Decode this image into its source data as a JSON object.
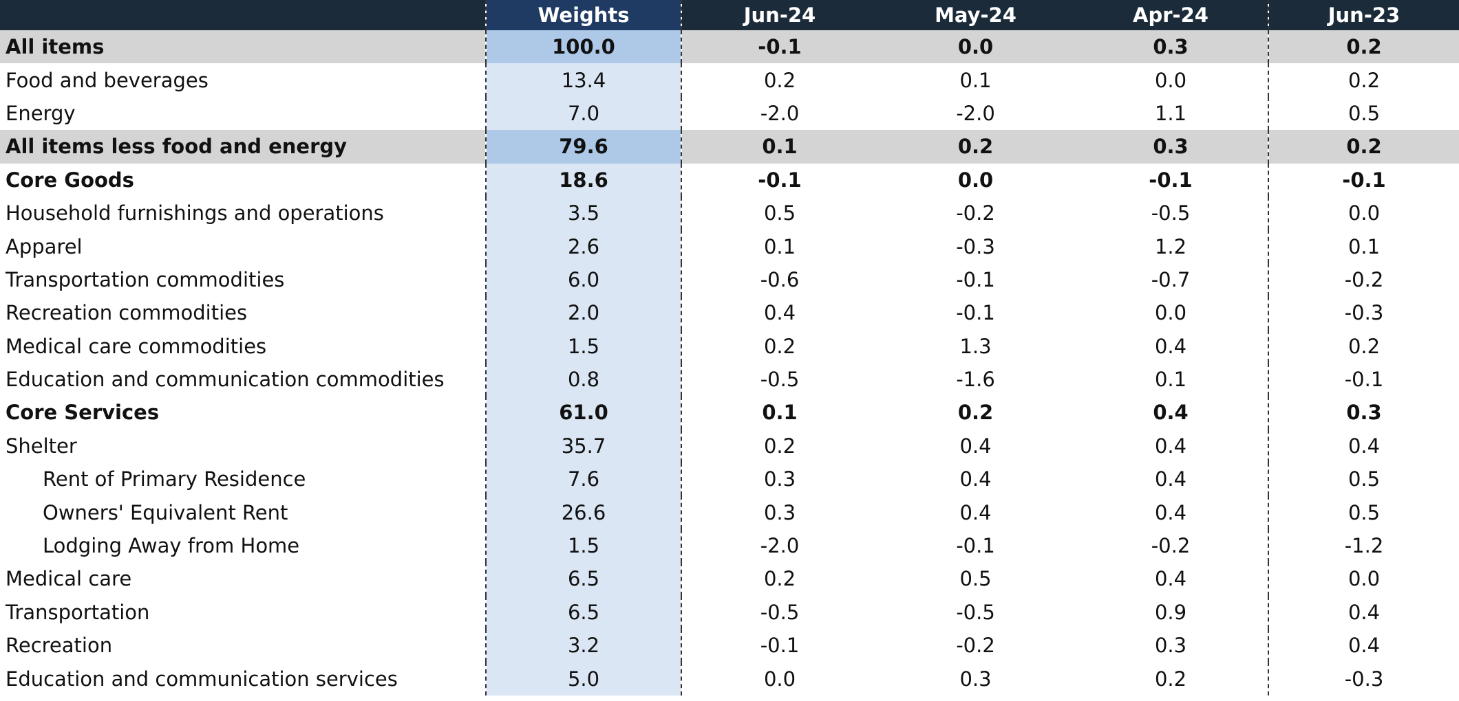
{
  "columns": [
    "",
    "Weights",
    "Jun-24",
    "May-24",
    "Apr-24",
    "Jun-23"
  ],
  "rows": [
    {
      "label": "All items",
      "weight": "100.0",
      "jun24": "-0.1",
      "may24": "0.0",
      "apr24": "0.3",
      "jun23": "0.2",
      "bold": true,
      "shaded": true,
      "indent": false
    },
    {
      "label": "Food and beverages",
      "weight": "13.4",
      "jun24": "0.2",
      "may24": "0.1",
      "apr24": "0.0",
      "jun23": "0.2",
      "bold": false,
      "shaded": false,
      "indent": false
    },
    {
      "label": "Energy",
      "weight": "7.0",
      "jun24": "-2.0",
      "may24": "-2.0",
      "apr24": "1.1",
      "jun23": "0.5",
      "bold": false,
      "shaded": false,
      "indent": false
    },
    {
      "label": "All items less food and energy",
      "weight": "79.6",
      "jun24": "0.1",
      "may24": "0.2",
      "apr24": "0.3",
      "jun23": "0.2",
      "bold": true,
      "shaded": true,
      "indent": false
    },
    {
      "label": "Core Goods",
      "weight": "18.6",
      "jun24": "-0.1",
      "may24": "0.0",
      "apr24": "-0.1",
      "jun23": "-0.1",
      "bold": true,
      "shaded": false,
      "indent": false
    },
    {
      "label": "Household furnishings and operations",
      "weight": "3.5",
      "jun24": "0.5",
      "may24": "-0.2",
      "apr24": "-0.5",
      "jun23": "0.0",
      "bold": false,
      "shaded": false,
      "indent": false
    },
    {
      "label": "Apparel",
      "weight": "2.6",
      "jun24": "0.1",
      "may24": "-0.3",
      "apr24": "1.2",
      "jun23": "0.1",
      "bold": false,
      "shaded": false,
      "indent": false
    },
    {
      "label": "Transportation commodities",
      "weight": "6.0",
      "jun24": "-0.6",
      "may24": "-0.1",
      "apr24": "-0.7",
      "jun23": "-0.2",
      "bold": false,
      "shaded": false,
      "indent": false
    },
    {
      "label": "Recreation commodities",
      "weight": "2.0",
      "jun24": "0.4",
      "may24": "-0.1",
      "apr24": "0.0",
      "jun23": "-0.3",
      "bold": false,
      "shaded": false,
      "indent": false
    },
    {
      "label": "Medical care commodities",
      "weight": "1.5",
      "jun24": "0.2",
      "may24": "1.3",
      "apr24": "0.4",
      "jun23": "0.2",
      "bold": false,
      "shaded": false,
      "indent": false
    },
    {
      "label": "Education and communication commodities",
      "weight": "0.8",
      "jun24": "-0.5",
      "may24": "-1.6",
      "apr24": "0.1",
      "jun23": "-0.1",
      "bold": false,
      "shaded": false,
      "indent": false
    },
    {
      "label": "Core Services",
      "weight": "61.0",
      "jun24": "0.1",
      "may24": "0.2",
      "apr24": "0.4",
      "jun23": "0.3",
      "bold": true,
      "shaded": false,
      "indent": false
    },
    {
      "label": "Shelter",
      "weight": "35.7",
      "jun24": "0.2",
      "may24": "0.4",
      "apr24": "0.4",
      "jun23": "0.4",
      "bold": false,
      "shaded": false,
      "indent": false
    },
    {
      "label": "Rent of Primary Residence",
      "weight": "7.6",
      "jun24": "0.3",
      "may24": "0.4",
      "apr24": "0.4",
      "jun23": "0.5",
      "bold": false,
      "shaded": false,
      "indent": true
    },
    {
      "label": "Owners' Equivalent Rent",
      "weight": "26.6",
      "jun24": "0.3",
      "may24": "0.4",
      "apr24": "0.4",
      "jun23": "0.5",
      "bold": false,
      "shaded": false,
      "indent": true
    },
    {
      "label": "Lodging Away from Home",
      "weight": "1.5",
      "jun24": "-2.0",
      "may24": "-0.1",
      "apr24": "-0.2",
      "jun23": "-1.2",
      "bold": false,
      "shaded": false,
      "indent": true
    },
    {
      "label": "Medical care",
      "weight": "6.5",
      "jun24": "0.2",
      "may24": "0.5",
      "apr24": "0.4",
      "jun23": "0.0",
      "bold": false,
      "shaded": false,
      "indent": false
    },
    {
      "label": "Transportation",
      "weight": "6.5",
      "jun24": "-0.5",
      "may24": "-0.5",
      "apr24": "0.9",
      "jun23": "0.4",
      "bold": false,
      "shaded": false,
      "indent": false
    },
    {
      "label": "Recreation",
      "weight": "3.2",
      "jun24": "-0.1",
      "may24": "-0.2",
      "apr24": "0.3",
      "jun23": "0.4",
      "bold": false,
      "shaded": false,
      "indent": false
    },
    {
      "label": "Education and communication services",
      "weight": "5.0",
      "jun24": "0.0",
      "may24": "0.3",
      "apr24": "0.2",
      "jun23": "-0.3",
      "bold": false,
      "shaded": false,
      "indent": false
    }
  ],
  "colors": {
    "header_bg": "#1c2b3a",
    "weights_header_bg": "#1f3b63",
    "weights_col_bg": "#dbe6f5",
    "shaded_row_bg": "#d4d4d4",
    "shaded_weights_bg": "#aec8e8"
  }
}
